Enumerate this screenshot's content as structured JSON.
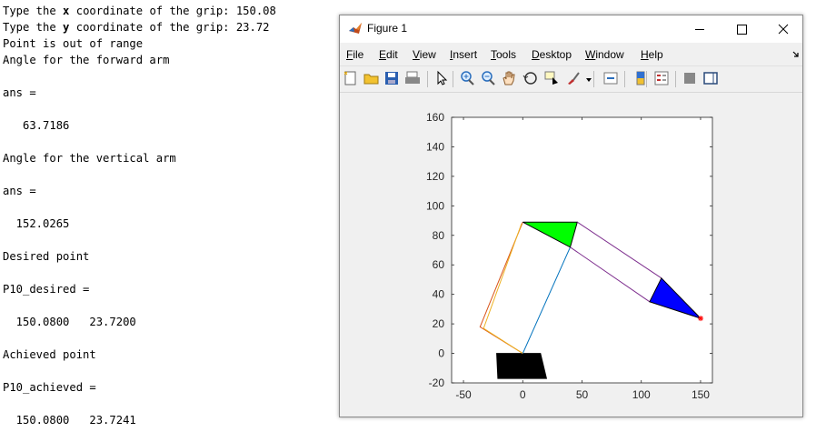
{
  "console": {
    "lines": [
      {
        "pre": "Type the ",
        "bold": "x",
        "post": " coordinate of the grip: 150.08"
      },
      {
        "pre": "Type the ",
        "bold": "y",
        "post": " coordinate of the grip: 23.72"
      },
      {
        "pre": "Point is out of range"
      },
      {
        "pre": "Angle for the forward arm"
      },
      {
        "pre": ""
      },
      {
        "pre": "ans ="
      },
      {
        "pre": ""
      },
      {
        "pre": "   63.7186"
      },
      {
        "pre": ""
      },
      {
        "pre": "Angle for the vertical arm"
      },
      {
        "pre": ""
      },
      {
        "pre": "ans ="
      },
      {
        "pre": ""
      },
      {
        "pre": "  152.0265"
      },
      {
        "pre": ""
      },
      {
        "pre": "Desired point"
      },
      {
        "pre": ""
      },
      {
        "pre": "P10_desired ="
      },
      {
        "pre": ""
      },
      {
        "pre": "  150.0800   23.7200"
      },
      {
        "pre": ""
      },
      {
        "pre": "Achieved point"
      },
      {
        "pre": ""
      },
      {
        "pre": "P10_achieved ="
      },
      {
        "pre": ""
      },
      {
        "pre": "  150.0800   23.7241"
      }
    ]
  },
  "window": {
    "title": "Figure 1",
    "menu": [
      {
        "label": "File",
        "key": "F",
        "rest": "ile"
      },
      {
        "label": "Edit",
        "key": "E",
        "rest": "dit"
      },
      {
        "label": "View",
        "key": "V",
        "rest": "iew"
      },
      {
        "label": "Insert",
        "key": "I",
        "rest": "nsert"
      },
      {
        "label": "Tools",
        "key": "T",
        "rest": "ools"
      },
      {
        "label": "Desktop",
        "key": "D",
        "rest": "esktop"
      },
      {
        "label": "Window",
        "key": "W",
        "rest": "indow"
      },
      {
        "label": "Help",
        "key": "H",
        "rest": "elp"
      }
    ],
    "toolbar": [
      "new-figure-icon",
      "open-file-icon",
      "save-icon",
      "print-icon",
      "pointer-icon",
      "zoom-in-icon",
      "zoom-out-icon",
      "pan-icon",
      "rotate-3d-icon",
      "data-cursor-icon",
      "brush-icon",
      "link-plot-icon",
      "colorbar-icon",
      "legend-icon",
      "hide-plot-tools-icon",
      "show-plot-tools-icon"
    ]
  },
  "chart_data": {
    "type": "line",
    "xlim": [
      -60,
      160
    ],
    "ylim": [
      -20,
      160
    ],
    "xticks": [
      -50,
      0,
      50,
      100,
      150
    ],
    "yticks": [
      -20,
      0,
      20,
      40,
      60,
      80,
      100,
      120,
      140,
      160
    ],
    "grid": false,
    "colors": {
      "orange": "#D95319",
      "yellow": "#EDB120",
      "blue": "#0072BD",
      "purple": "#7E2F8E",
      "green": "#00FF00",
      "fill_blue": "#0000FF",
      "black": "#000000",
      "marker": "#FF0000"
    },
    "base_trapezoid": [
      [
        -22,
        0
      ],
      [
        15,
        0
      ],
      [
        20,
        -17
      ],
      [
        -21,
        -17
      ]
    ],
    "vertical_arm": {
      "orange": [
        [
          0,
          0
        ],
        [
          -36,
          18
        ],
        [
          0,
          89
        ]
      ],
      "yellow": [
        [
          0,
          0
        ],
        [
          -33,
          17
        ],
        [
          -1,
          88
        ]
      ],
      "blue": [
        [
          0,
          0
        ],
        [
          40,
          72
        ]
      ]
    },
    "green_triangle": [
      [
        0,
        89
      ],
      [
        46,
        89
      ],
      [
        40,
        72
      ]
    ],
    "forward_arm": {
      "upper": [
        [
          46,
          89
        ],
        [
          117,
          51
        ]
      ],
      "lower": [
        [
          40,
          72
        ],
        [
          107,
          35
        ]
      ]
    },
    "blue_triangle": [
      [
        117,
        51
      ],
      [
        107,
        35
      ],
      [
        150.08,
        23.72
      ]
    ],
    "grip_point": [
      150.08,
      23.72
    ]
  }
}
